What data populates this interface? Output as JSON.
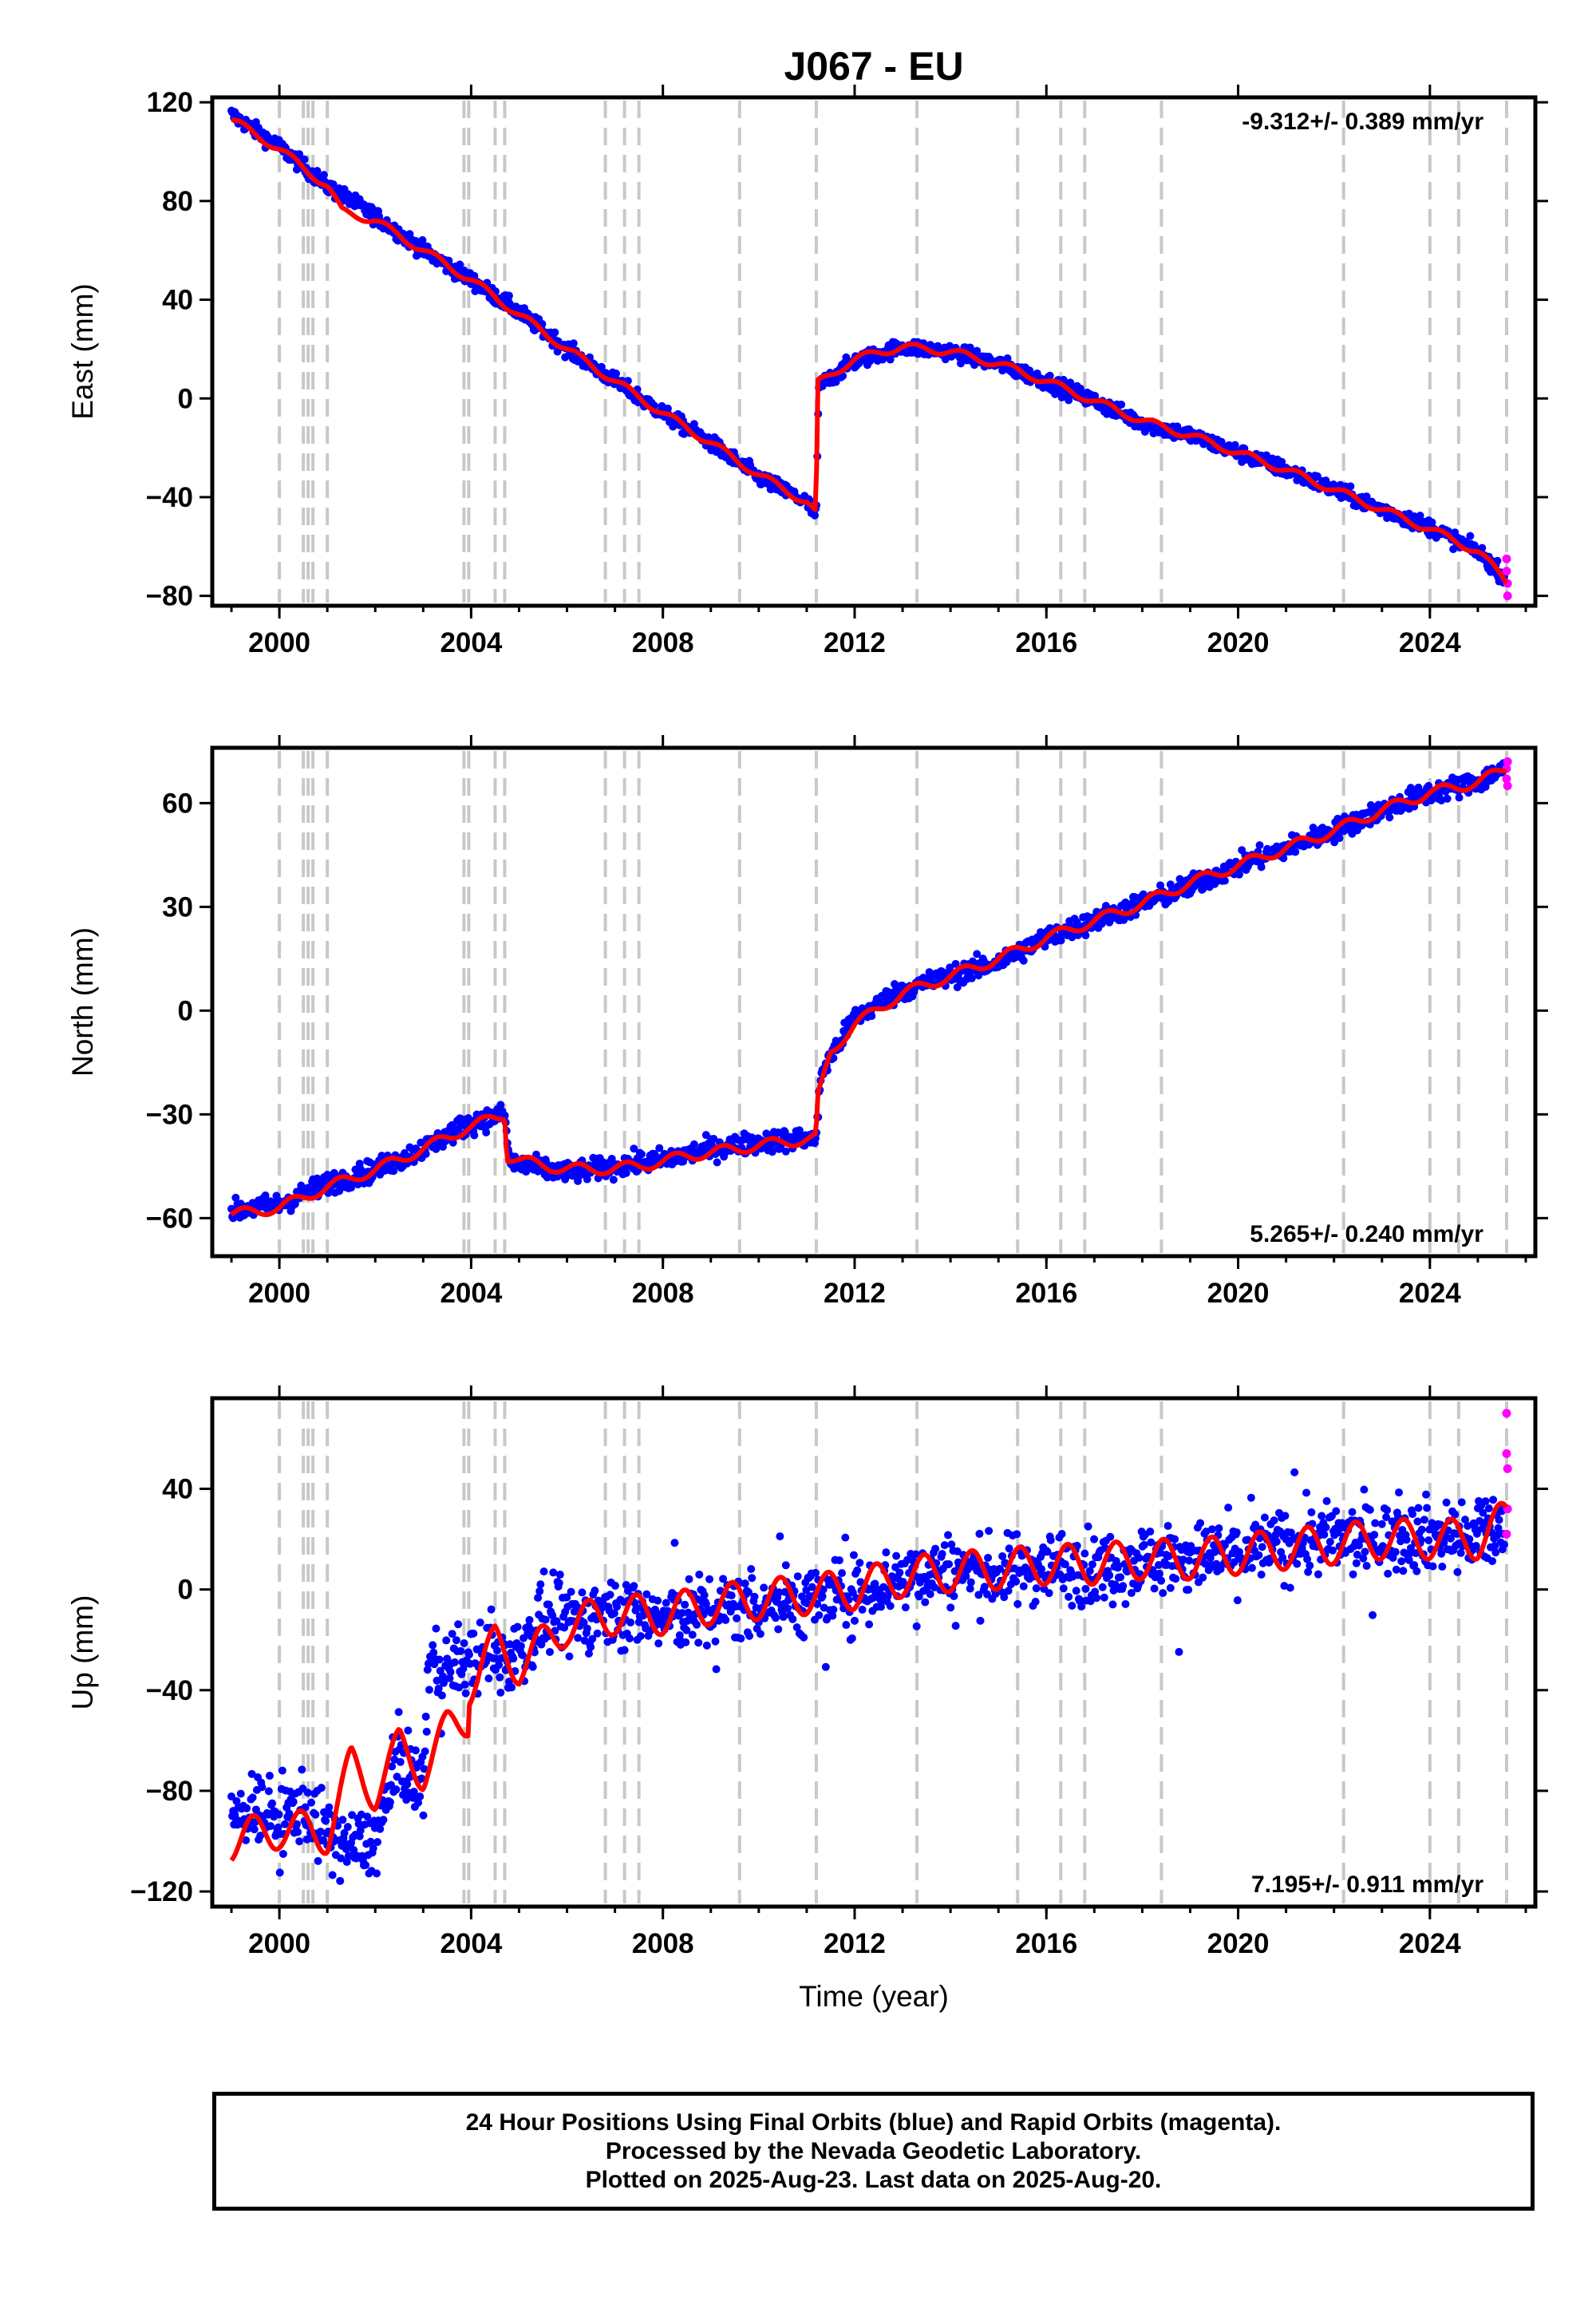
{
  "title": "J067 - EU",
  "footer": {
    "line1": "24 Hour Positions Using Final Orbits (blue) and Rapid Orbits (magenta).",
    "line2": "Processed by the Nevada Geodetic Laboratory.",
    "line3": "Plotted on 2025-Aug-23. Last data on 2025-Aug-20."
  },
  "chart_data": [
    {
      "type": "scatter",
      "component": "east",
      "ylabel": "East (mm)",
      "xlabel": "",
      "rate_text": "-9.312+/- 0.389 mm/yr",
      "rate_position": "top-right",
      "xlim": [
        1998.6,
        2026.2
      ],
      "ylim": [
        -84,
        122
      ],
      "xticks": [
        2000,
        2004,
        2008,
        2012,
        2016,
        2020,
        2024
      ],
      "yticks": [
        -80,
        -40,
        0,
        40,
        80,
        120
      ],
      "series": [
        {
          "color": "#0000ff",
          "values": [
            [
              1999.0,
              115
            ],
            [
              2000.0,
              102
            ],
            [
              2001.0,
              86
            ],
            [
              2002.0,
              74
            ],
            [
              2003.0,
              60
            ],
            [
              2004.0,
              48
            ],
            [
              2005.0,
              35
            ],
            [
              2006.0,
              20
            ],
            [
              2007.0,
              7
            ],
            [
              2008.0,
              -6
            ],
            [
              2009.0,
              -18
            ],
            [
              2010.0,
              -32
            ],
            [
              2011.0,
              -42
            ],
            [
              2011.2,
              -48
            ],
            [
              2011.25,
              5
            ],
            [
              2012.0,
              15
            ],
            [
              2013.0,
              21
            ],
            [
              2014.0,
              19
            ],
            [
              2015.0,
              14
            ],
            [
              2016.0,
              7
            ],
            [
              2017.0,
              -1
            ],
            [
              2018.0,
              -10
            ],
            [
              2019.0,
              -15
            ],
            [
              2020.0,
              -22
            ],
            [
              2021.0,
              -29
            ],
            [
              2022.0,
              -37
            ],
            [
              2023.0,
              -45
            ],
            [
              2024.0,
              -52
            ],
            [
              2025.0,
              -62
            ],
            [
              2025.55,
              -72
            ]
          ]
        },
        {
          "color": "#ff00ff",
          "values": [
            [
              2025.6,
              -65
            ],
            [
              2025.6,
              -70
            ],
            [
              2025.62,
              -75
            ],
            [
              2025.62,
              -80
            ]
          ]
        },
        {
          "color": "#ff0000",
          "values": [
            [
              1999.0,
              113
            ],
            [
              2000.0,
              101
            ],
            [
              2001.0,
              86
            ],
            [
              2001.3,
              76
            ],
            [
              2002.0,
              72
            ],
            [
              2003.0,
              60
            ],
            [
              2004.0,
              48
            ],
            [
              2005.0,
              34
            ],
            [
              2006.0,
              20
            ],
            [
              2007.0,
              7
            ],
            [
              2008.0,
              -6
            ],
            [
              2009.0,
              -18
            ],
            [
              2010.0,
              -31
            ],
            [
              2011.0,
              -42
            ],
            [
              2011.2,
              -47
            ],
            [
              2011.22,
              6
            ],
            [
              2012.0,
              16
            ],
            [
              2013.0,
              21
            ],
            [
              2014.0,
              19
            ],
            [
              2015.0,
              14
            ],
            [
              2016.0,
              7
            ],
            [
              2017.0,
              -1
            ],
            [
              2018.0,
              -9
            ],
            [
              2019.0,
              -15
            ],
            [
              2020.0,
              -22
            ],
            [
              2021.0,
              -29
            ],
            [
              2022.0,
              -37
            ],
            [
              2023.0,
              -45
            ],
            [
              2024.0,
              -53
            ],
            [
              2025.0,
              -62
            ],
            [
              2025.6,
              -74
            ]
          ]
        }
      ]
    },
    {
      "type": "scatter",
      "component": "north",
      "ylabel": "North (mm)",
      "xlabel": "",
      "rate_text": "5.265+/- 0.240 mm/yr",
      "rate_position": "bottom-right",
      "xlim": [
        1998.6,
        2026.2
      ],
      "ylim": [
        -71,
        76
      ],
      "xticks": [
        2000,
        2004,
        2008,
        2012,
        2016,
        2020,
        2024
      ],
      "yticks": [
        -60,
        -30,
        0,
        30,
        60
      ],
      "series": [
        {
          "color": "#0000ff",
          "values": [
            [
              1999.0,
              -58
            ],
            [
              2000.0,
              -56
            ],
            [
              2001.0,
              -50
            ],
            [
              2002.0,
              -46
            ],
            [
              2003.0,
              -40
            ],
            [
              2003.9,
              -33
            ],
            [
              2004.7,
              -30
            ],
            [
              2004.8,
              -44
            ],
            [
              2006.0,
              -47
            ],
            [
              2007.0,
              -45
            ],
            [
              2008.0,
              -43
            ],
            [
              2009.0,
              -40
            ],
            [
              2010.0,
              -38
            ],
            [
              2011.0,
              -37
            ],
            [
              2011.2,
              -37
            ],
            [
              2011.3,
              -18
            ],
            [
              2012.0,
              -2
            ],
            [
              2013.0,
              6
            ],
            [
              2014.0,
              10
            ],
            [
              2015.0,
              14
            ],
            [
              2016.0,
              21
            ],
            [
              2017.0,
              26
            ],
            [
              2018.0,
              31
            ],
            [
              2019.0,
              36
            ],
            [
              2020.0,
              42
            ],
            [
              2021.0,
              47
            ],
            [
              2022.0,
              52
            ],
            [
              2023.0,
              58
            ],
            [
              2024.0,
              63
            ],
            [
              2025.0,
              66
            ],
            [
              2025.55,
              70
            ]
          ]
        },
        {
          "color": "#ff00ff",
          "values": [
            [
              2025.6,
              70
            ],
            [
              2025.6,
              67
            ],
            [
              2025.62,
              65
            ],
            [
              2025.62,
              72
            ]
          ]
        },
        {
          "color": "#ff0000",
          "values": [
            [
              1999.0,
              -59
            ],
            [
              2000.0,
              -57
            ],
            [
              2001.0,
              -51
            ],
            [
              2002.0,
              -46
            ],
            [
              2003.0,
              -40
            ],
            [
              2003.9,
              -34
            ],
            [
              2004.7,
              -30
            ],
            [
              2004.75,
              -42
            ],
            [
              2005.5,
              -45
            ],
            [
              2006.5,
              -46
            ],
            [
              2007.5,
              -45
            ],
            [
              2008.5,
              -42
            ],
            [
              2009.5,
              -40
            ],
            [
              2010.5,
              -38
            ],
            [
              2011.2,
              -37
            ],
            [
              2011.22,
              -26
            ],
            [
              2011.5,
              -12
            ],
            [
              2012.0,
              -4
            ],
            [
              2013.0,
              5
            ],
            [
              2014.0,
              10
            ],
            [
              2015.0,
              15
            ],
            [
              2016.0,
              21
            ],
            [
              2017.0,
              26
            ],
            [
              2018.0,
              31
            ],
            [
              2019.0,
              37
            ],
            [
              2020.0,
              42
            ],
            [
              2021.0,
              47
            ],
            [
              2022.0,
              52
            ],
            [
              2023.0,
              58
            ],
            [
              2024.0,
              63
            ],
            [
              2025.0,
              66
            ],
            [
              2025.6,
              70
            ]
          ]
        }
      ]
    },
    {
      "type": "scatter",
      "component": "up",
      "ylabel": "Up (mm)",
      "xlabel": "Time (year)",
      "rate_text": "7.195+/- 0.911 mm/yr",
      "rate_position": "bottom-right",
      "xlim": [
        1998.6,
        2026.2
      ],
      "ylim": [
        -126,
        76
      ],
      "xticks": [
        2000,
        2004,
        2008,
        2012,
        2016,
        2020,
        2024
      ],
      "yticks": [
        -120,
        -80,
        -40,
        0,
        40
      ],
      "series": [
        {
          "color": "#0000ff",
          "values": [
            [
              1999.0,
              -92
            ],
            [
              1999.5,
              -85
            ],
            [
              2000.0,
              -92
            ],
            [
              2000.5,
              -85
            ],
            [
              2001.0,
              -98
            ],
            [
              2001.5,
              -102
            ],
            [
              2002.0,
              -100
            ],
            [
              2002.5,
              -68
            ],
            [
              2003.0,
              -78
            ],
            [
              2003.1,
              -32
            ],
            [
              2004.0,
              -28
            ],
            [
              2004.5,
              -28
            ],
            [
              2005.0,
              -25
            ],
            [
              2005.5,
              -12
            ],
            [
              2006.0,
              -12
            ],
            [
              2007.0,
              -8
            ],
            [
              2008.0,
              -12
            ],
            [
              2009.0,
              -8
            ],
            [
              2010.0,
              -6
            ],
            [
              2011.0,
              -4
            ],
            [
              2012.0,
              -2
            ],
            [
              2013.0,
              5
            ],
            [
              2014.0,
              8
            ],
            [
              2015.0,
              6
            ],
            [
              2016.0,
              10
            ],
            [
              2017.0,
              8
            ],
            [
              2018.0,
              12
            ],
            [
              2019.0,
              12
            ],
            [
              2020.0,
              14
            ],
            [
              2021.0,
              18
            ],
            [
              2022.0,
              20
            ],
            [
              2023.0,
              20
            ],
            [
              2024.0,
              22
            ],
            [
              2025.0,
              20
            ],
            [
              2025.55,
              25
            ]
          ]
        },
        {
          "color": "#ff00ff",
          "values": [
            [
              2025.6,
              70
            ],
            [
              2025.6,
              54
            ],
            [
              2025.62,
              48
            ],
            [
              2025.62,
              32
            ],
            [
              2025.6,
              22
            ]
          ]
        },
        {
          "color": "#ff0000",
          "values": [
            [
              1999.0,
              -100
            ],
            [
              2000.0,
              -95
            ],
            [
              2001.0,
              -97
            ],
            [
              2001.5,
              -70
            ],
            [
              2002.0,
              -80
            ],
            [
              2002.5,
              -63
            ],
            [
              2003.0,
              -72
            ],
            [
              2003.5,
              -56
            ],
            [
              2003.95,
              -50
            ],
            [
              2003.96,
              -38
            ],
            [
              2004.5,
              -22
            ],
            [
              2005.0,
              -30
            ],
            [
              2006.0,
              -14
            ],
            [
              2007.0,
              -10
            ],
            [
              2008.0,
              -10
            ],
            [
              2009.0,
              -6
            ],
            [
              2010.0,
              -4
            ],
            [
              2011.0,
              -2
            ],
            [
              2012.0,
              0
            ],
            [
              2013.0,
              5
            ],
            [
              2014.0,
              7
            ],
            [
              2015.0,
              8
            ],
            [
              2016.0,
              10
            ],
            [
              2017.0,
              10
            ],
            [
              2018.0,
              12
            ],
            [
              2019.0,
              12
            ],
            [
              2020.0,
              14
            ],
            [
              2021.0,
              16
            ],
            [
              2022.0,
              18
            ],
            [
              2023.0,
              20
            ],
            [
              2024.0,
              20
            ],
            [
              2025.0,
              20
            ],
            [
              2025.6,
              28
            ]
          ]
        }
      ]
    }
  ]
}
